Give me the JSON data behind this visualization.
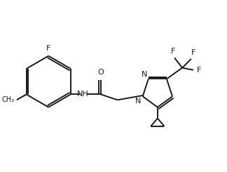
{
  "bg_color": "#ffffff",
  "line_color": "#1a1a1a",
  "text_color": "#1a1a1a",
  "N_color": "#1a1a2e",
  "bond_lw": 1.4,
  "figsize": [
    3.24,
    2.45
  ],
  "dpi": 100,
  "xlim": [
    0,
    10
  ],
  "ylim": [
    0,
    7.6
  ]
}
